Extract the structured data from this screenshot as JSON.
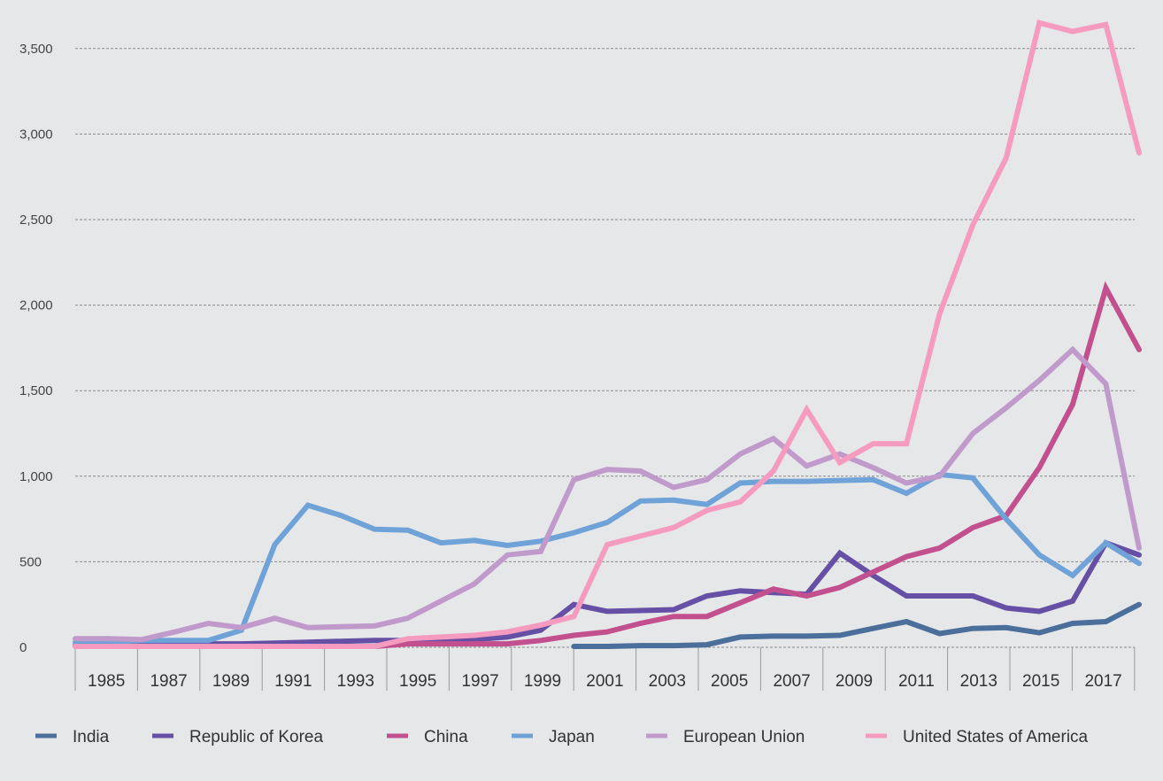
{
  "chart_data": {
    "type": "line",
    "title": "",
    "xlabel": "",
    "ylabel": "",
    "ylim": [
      0,
      3500
    ],
    "yticks": [
      "0",
      "500",
      "1,000",
      "1,500",
      "2,000",
      "2,500",
      "3,000",
      "3,500"
    ],
    "ytick_values": [
      0,
      500,
      1000,
      1500,
      2000,
      2500,
      3000,
      3500
    ],
    "xtick_labels": [
      "1985",
      "1987",
      "1989",
      "1991",
      "1993",
      "1995",
      "1997",
      "1999",
      "2001",
      "2003",
      "2005",
      "2007",
      "2009",
      "2011",
      "2013",
      "2015",
      "2017"
    ],
    "x": [
      1985,
      1986,
      1987,
      1988,
      1989,
      1990,
      1991,
      1992,
      1993,
      1994,
      1995,
      1996,
      1997,
      1998,
      1999,
      2000,
      2001,
      2002,
      2003,
      2004,
      2005,
      2006,
      2007,
      2008,
      2009,
      2010,
      2011,
      2012,
      2013,
      2014,
      2015,
      2016,
      2017
    ],
    "grid": "horizontal dashed",
    "legend_position": "bottom",
    "series": [
      {
        "name": "India",
        "color": "#4a6f9a",
        "values": [
          null,
          null,
          null,
          null,
          null,
          null,
          null,
          null,
          null,
          null,
          null,
          null,
          null,
          null,
          null,
          5,
          5,
          10,
          10,
          15,
          60,
          65,
          65,
          70,
          110,
          150,
          80,
          110,
          115,
          85,
          140,
          150,
          250
        ]
      },
      {
        "name": "Republic of Korea",
        "color": "#6650a6",
        "values": [
          10,
          10,
          15,
          20,
          20,
          20,
          25,
          30,
          35,
          40,
          40,
          40,
          45,
          60,
          100,
          250,
          210,
          215,
          220,
          300,
          330,
          320,
          310,
          550,
          420,
          300,
          300,
          300,
          230,
          210,
          270,
          610,
          540
        ]
      },
      {
        "name": "China",
        "color": "#c2508f",
        "values": [
          5,
          5,
          5,
          5,
          5,
          5,
          5,
          5,
          5,
          5,
          20,
          20,
          20,
          20,
          40,
          70,
          90,
          140,
          180,
          180,
          260,
          340,
          300,
          350,
          440,
          530,
          580,
          700,
          770,
          1050,
          1420,
          2100,
          1740
        ]
      },
      {
        "name": "Japan",
        "color": "#6fa3d8",
        "values": [
          30,
          30,
          40,
          40,
          40,
          100,
          600,
          830,
          770,
          690,
          685,
          610,
          625,
          595,
          620,
          670,
          730,
          855,
          860,
          835,
          960,
          970,
          970,
          975,
          980,
          900,
          1010,
          990,
          750,
          540,
          420,
          610,
          490
        ]
      },
      {
        "name": "European Union",
        "color": "#c09acb",
        "values": [
          50,
          50,
          45,
          90,
          140,
          115,
          170,
          115,
          120,
          125,
          170,
          270,
          370,
          540,
          560,
          980,
          1040,
          1030,
          935,
          980,
          1130,
          1220,
          1060,
          1130,
          1050,
          960,
          1000,
          1250,
          1400,
          1560,
          1740,
          1540,
          580
        ]
      },
      {
        "name": "United States of America",
        "color": "#f59bc0",
        "values": [
          5,
          5,
          5,
          5,
          5,
          5,
          5,
          5,
          5,
          5,
          50,
          60,
          70,
          90,
          130,
          180,
          600,
          650,
          700,
          800,
          850,
          1030,
          1390,
          1080,
          1190,
          1190,
          1950,
          2470,
          2860,
          3650,
          3600,
          3640,
          2890
        ]
      }
    ]
  }
}
